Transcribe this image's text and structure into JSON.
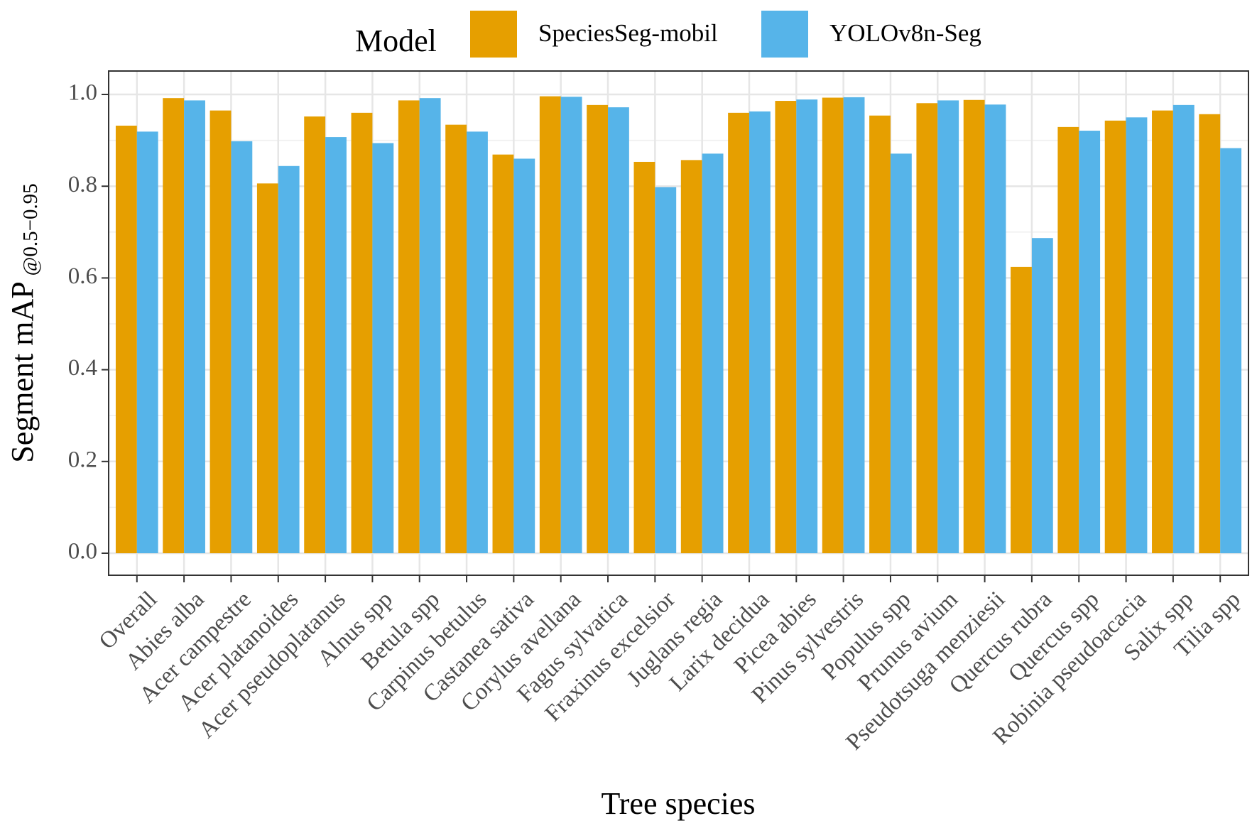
{
  "chart_data": {
    "type": "bar",
    "xlabel": "Tree species",
    "ylabel_main": "Segment mAP",
    "ylabel_sub": "@0.5−0.95",
    "ylim": [
      0,
      1.05
    ],
    "yticks": [
      "0.0",
      "0.2",
      "0.4",
      "0.6",
      "0.8",
      "1.0"
    ],
    "grid": true,
    "legend": {
      "title": "Model",
      "placement": "top"
    },
    "categories": [
      "Overall",
      "Abies alba",
      "Acer campestre",
      "Acer platanoides",
      "Acer pseudoplatanus",
      "Alnus spp",
      "Betula spp",
      "Carpinus betulus",
      "Castanea sativa",
      "Corylus avellana",
      "Fagus sylvatica",
      "Fraxinus excelsior",
      "Juglans regia",
      "Larix decidua",
      "Picea abies",
      "Pinus sylvestris",
      "Populus spp",
      "Prunus avium",
      "Pseudotsuga menziesii",
      "Quercus rubra",
      "Quercus spp",
      "Robinia pseudoacacia",
      "Salix spp",
      "Tilia spp"
    ],
    "series": [
      {
        "name": "SpeciesSeg-mobil",
        "color": "#E69F00",
        "values": [
          0.932,
          0.992,
          0.965,
          0.806,
          0.952,
          0.96,
          0.987,
          0.934,
          0.869,
          0.996,
          0.977,
          0.853,
          0.857,
          0.96,
          0.986,
          0.993,
          0.954,
          0.981,
          0.988,
          0.624,
          0.929,
          0.943,
          0.965,
          0.957
        ]
      },
      {
        "name": "YOLOv8n-Seg",
        "color": "#56B4E9",
        "values": [
          0.919,
          0.987,
          0.898,
          0.844,
          0.907,
          0.894,
          0.992,
          0.919,
          0.86,
          0.995,
          0.972,
          0.798,
          0.871,
          0.963,
          0.989,
          0.994,
          0.871,
          0.987,
          0.978,
          0.687,
          0.921,
          0.95,
          0.977,
          0.883
        ]
      }
    ]
  }
}
